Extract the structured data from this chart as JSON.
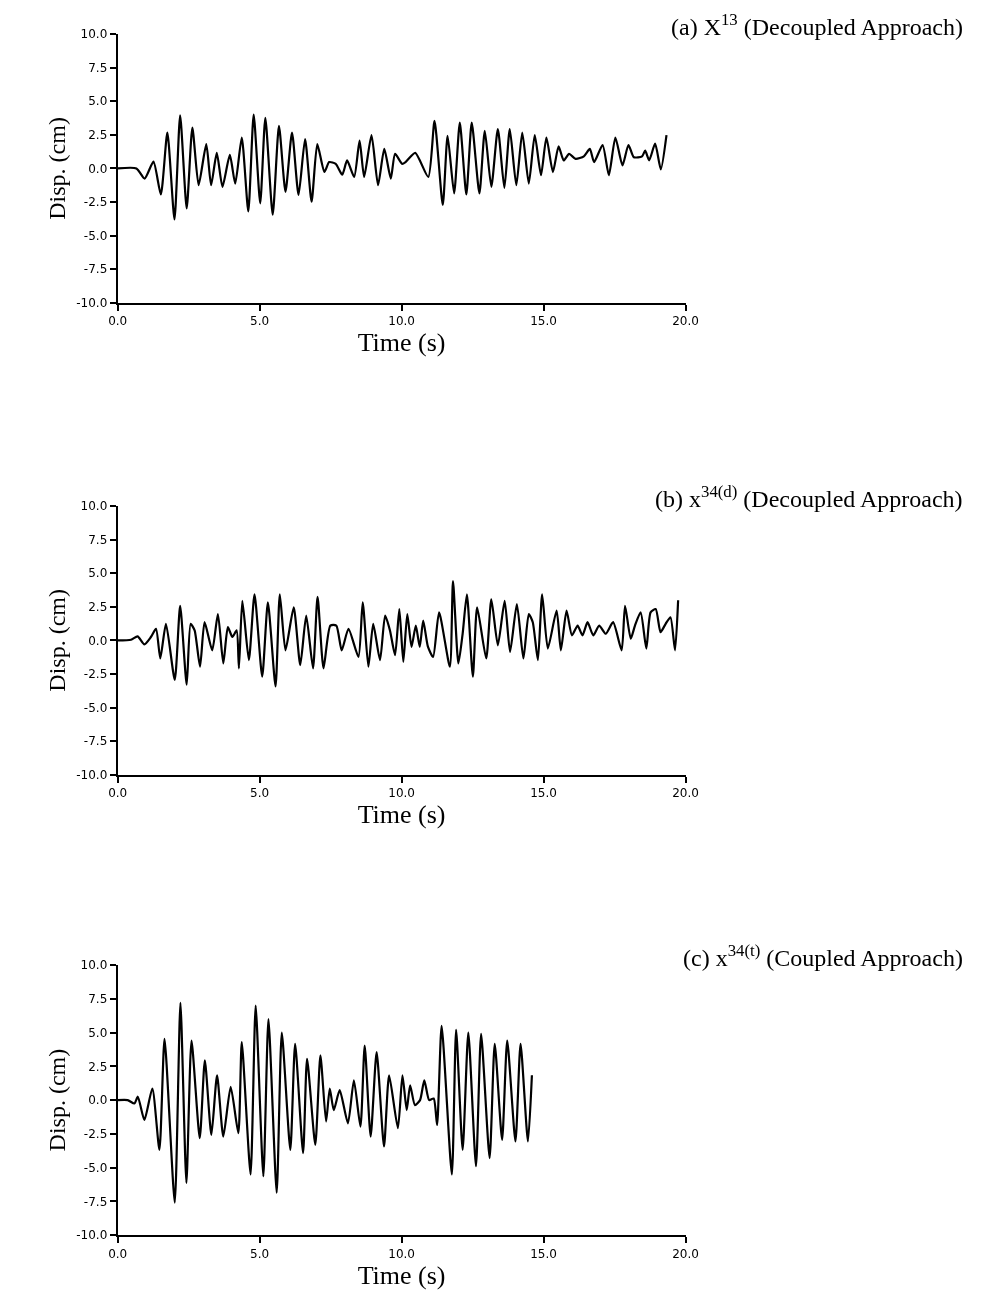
{
  "chart_data": [
    {
      "type": "line",
      "title": "(a) X$^{13}$ (Decoupled Approach)",
      "xlabel": "Time (s)",
      "ylabel": "Disp. (cm)",
      "xlim": [
        0,
        20
      ],
      "xticks": [
        {
          "value": 0,
          "label": "0.0"
        },
        {
          "value": 5,
          "label": "5.0"
        },
        {
          "value": 10,
          "label": "10.0"
        },
        {
          "value": 15,
          "label": "15.0"
        },
        {
          "value": 20,
          "label": "20.0"
        }
      ],
      "ylim": [
        -10,
        10
      ],
      "yticks": [
        {
          "value": -10,
          "label": "-10.0"
        },
        {
          "value": -7.5,
          "label": "-7.5"
        },
        {
          "value": -5,
          "label": "-5.0"
        },
        {
          "value": -2.5,
          "label": "-2.5"
        },
        {
          "value": 0,
          "label": "0.0"
        },
        {
          "value": 2.5,
          "label": "2.5"
        },
        {
          "value": 5,
          "label": "5.0"
        },
        {
          "value": 7.5,
          "label": "7.5"
        },
        {
          "value": 10,
          "label": "10.0"
        }
      ],
      "series": [
        {
          "color": "#000000",
          "x": [
            0,
            0.66,
            0.95,
            1.26,
            1.52,
            1.75,
            2.0,
            2.2,
            2.43,
            2.63,
            2.85,
            3.12,
            3.29,
            3.49,
            3.69,
            3.95,
            4.14,
            4.37,
            4.6,
            4.79,
            5.02,
            5.2,
            5.46,
            5.68,
            5.91,
            6.14,
            6.37,
            6.6,
            6.83,
            7.03,
            7.28,
            7.45,
            7.68,
            7.91,
            8.08,
            8.33,
            8.52,
            8.68,
            8.94,
            9.17,
            9.39,
            9.62,
            9.77,
            10.02,
            10.14,
            10.48,
            10.94,
            11.16,
            11.45,
            11.62,
            11.85,
            12.05,
            12.28,
            12.47,
            12.74,
            12.93,
            13.16,
            13.39,
            13.62,
            13.81,
            14.04,
            14.25,
            14.48,
            14.69,
            14.91,
            15.1,
            15.33,
            15.53,
            15.71,
            15.9,
            16.13,
            16.42,
            16.63,
            16.78,
            17.08,
            17.3,
            17.53,
            17.78,
            17.99,
            18.18,
            18.47,
            18.58,
            18.72,
            18.93,
            19.13,
            19.33
          ],
          "values": [
            0,
            0,
            -0.76,
            0.5,
            -1.94,
            2.67,
            -3.8,
            3.95,
            -2.97,
            3.04,
            -1.25,
            1.8,
            -1.25,
            1.15,
            -1.37,
            1.0,
            -1.13,
            2.3,
            -3.2,
            4.0,
            -2.6,
            3.77,
            -3.45,
            3.16,
            -1.74,
            2.67,
            -1.98,
            2.18,
            -2.48,
            1.81,
            -0.27,
            0.47,
            0.34,
            -0.47,
            0.59,
            -0.64,
            2.06,
            -0.64,
            2.48,
            -1.25,
            1.45,
            -0.76,
            1.08,
            0.34,
            0.47,
            1.15,
            -0.64,
            3.53,
            -2.72,
            2.43,
            -1.86,
            3.4,
            -1.94,
            3.4,
            -1.86,
            2.79,
            -1.37,
            2.92,
            -1.45,
            2.92,
            -1.25,
            2.67,
            -1.13,
            2.48,
            -0.51,
            2.3,
            -0.27,
            1.64,
            0.59,
            1.08,
            0.71,
            0.9,
            1.45,
            0.47,
            1.74,
            -0.51,
            2.3,
            0.22,
            1.74,
            0.83,
            0.9,
            1.32,
            0.6,
            1.84,
            -0.07,
            2.48
          ]
        }
      ]
    },
    {
      "type": "line",
      "title": "(b) x$^{34(d)}$ (Decoupled Approach)",
      "xlabel": "Time (s)",
      "ylabel": "Disp. (cm)",
      "xlim": [
        0,
        20
      ],
      "xticks": [
        {
          "value": 0,
          "label": "0.0"
        },
        {
          "value": 5,
          "label": "5.0"
        },
        {
          "value": 10,
          "label": "10.0"
        },
        {
          "value": 15,
          "label": "15.0"
        },
        {
          "value": 20,
          "label": "20.0"
        }
      ],
      "ylim": [
        -10,
        10
      ],
      "yticks": [
        {
          "value": -10,
          "label": "-10.0"
        },
        {
          "value": -7.5,
          "label": "-7.5"
        },
        {
          "value": -5,
          "label": "-5.0"
        },
        {
          "value": -2.5,
          "label": "-2.5"
        },
        {
          "value": 0,
          "label": "0.0"
        },
        {
          "value": 2.5,
          "label": "2.5"
        },
        {
          "value": 5,
          "label": "5.0"
        },
        {
          "value": 7.5,
          "label": "7.5"
        },
        {
          "value": 10,
          "label": "10.0"
        }
      ],
      "series": [
        {
          "color": "#000000",
          "x": [
            0,
            0.47,
            0.7,
            0.94,
            1.17,
            1.35,
            1.5,
            1.7,
            2.01,
            2.2,
            2.43,
            2.57,
            2.71,
            2.9,
            3.06,
            3.33,
            3.53,
            3.72,
            3.88,
            4.04,
            4.19,
            4.27,
            4.39,
            4.62,
            4.82,
            5.09,
            5.29,
            5.56,
            5.71,
            5.91,
            6.2,
            6.43,
            6.64,
            6.88,
            7.04,
            7.25,
            7.49,
            7.7,
            7.89,
            8.13,
            8.48,
            8.63,
            8.83,
            9.0,
            9.24,
            9.42,
            9.59,
            9.77,
            9.92,
            10.06,
            10.2,
            10.35,
            10.5,
            10.64,
            10.76,
            10.93,
            11.11,
            11.32,
            11.7,
            11.81,
            12.0,
            12.15,
            12.3,
            12.51,
            12.66,
            12.98,
            13.16,
            13.39,
            13.63,
            13.82,
            14.06,
            14.29,
            14.48,
            14.62,
            14.8,
            14.95,
            15.15,
            15.46,
            15.61,
            15.81,
            16.0,
            16.2,
            16.37,
            16.55,
            16.75,
            16.96,
            17.19,
            17.45,
            17.75,
            17.87,
            18.07,
            18.22,
            18.42,
            18.62,
            18.77,
            18.95,
            19.12,
            19.3,
            19.47,
            19.63,
            19.74
          ],
          "values": [
            0,
            0.05,
            0.3,
            -0.3,
            0.25,
            0.86,
            -1.35,
            1.23,
            -2.94,
            2.57,
            -3.3,
            1.23,
            0.74,
            -1.96,
            1.35,
            -0.74,
            1.96,
            -1.72,
            0.98,
            0.25,
            0.74,
            -2.08,
            2.94,
            -1.47,
            3.43,
            -2.7,
            2.82,
            -3.43,
            3.43,
            -0.74,
            2.45,
            -1.84,
            1.84,
            -2.08,
            3.24,
            -2.08,
            1.1,
            1.1,
            -0.74,
            0.86,
            -1.23,
            2.82,
            -1.96,
            1.23,
            -1.47,
            1.84,
            0.74,
            -1.1,
            2.33,
            -1.6,
            1.96,
            -0.49,
            1.1,
            -0.49,
            1.47,
            -0.49,
            -1.23,
            2.08,
            -1.96,
            4.41,
            -1.72,
            0.49,
            3.43,
            -2.7,
            2.45,
            -1.35,
            3.06,
            -0.37,
            2.94,
            -0.86,
            2.7,
            -1.35,
            1.96,
            1.35,
            -1.47,
            3.43,
            -0.61,
            2.21,
            -0.74,
            2.21,
            0.37,
            1.1,
            0.37,
            1.35,
            0.37,
            1.1,
            0.49,
            1.35,
            -0.74,
            2.57,
            0.12,
            1.1,
            2.08,
            -0.61,
            2.08,
            2.33,
            0.61,
            1.23,
            1.72,
            -0.74,
            2.99
          ]
        }
      ]
    },
    {
      "type": "line",
      "title": "(c) x$^{34(t)}$ (Coupled Approach)",
      "xlabel": "Time (s)",
      "ylabel": "Disp. (cm)",
      "xlim": [
        0,
        20
      ],
      "xticks": [
        {
          "value": 0,
          "label": "0.0"
        },
        {
          "value": 5,
          "label": "5.0"
        },
        {
          "value": 10,
          "label": "10.0"
        },
        {
          "value": 15,
          "label": "15.0"
        },
        {
          "value": 20,
          "label": "20.0"
        }
      ],
      "ylim": [
        -10,
        10
      ],
      "yticks": [
        {
          "value": -10,
          "label": "-10.0"
        },
        {
          "value": -7.5,
          "label": "-7.5"
        },
        {
          "value": -5,
          "label": "-5.0"
        },
        {
          "value": -2.5,
          "label": "-2.5"
        },
        {
          "value": 0,
          "label": "0.0"
        },
        {
          "value": 2.5,
          "label": "2.5"
        },
        {
          "value": 5,
          "label": "5.0"
        },
        {
          "value": 7.5,
          "label": "7.5"
        },
        {
          "value": 10,
          "label": "10.0"
        }
      ],
      "series": [
        {
          "color": "#000000",
          "x": [
            0,
            0.35,
            0.59,
            0.71,
            0.94,
            1.22,
            1.47,
            1.65,
            2.01,
            2.21,
            2.42,
            2.6,
            2.89,
            3.07,
            3.3,
            3.5,
            3.72,
            3.98,
            4.25,
            4.37,
            4.68,
            4.86,
            5.13,
            5.31,
            5.6,
            5.78,
            6.08,
            6.25,
            6.53,
            6.67,
            6.96,
            7.14,
            7.34,
            7.47,
            7.61,
            7.82,
            8.11,
            8.32,
            8.55,
            8.7,
            8.91,
            9.12,
            9.38,
            9.56,
            9.87,
            10.03,
            10.18,
            10.3,
            10.47,
            10.65,
            10.8,
            10.97,
            11.13,
            11.25,
            11.41,
            11.77,
            11.92,
            12.15,
            12.35,
            12.62,
            12.8,
            13.1,
            13.28,
            13.54,
            13.72,
            14.01,
            14.19,
            14.45,
            14.59
          ],
          "values": [
            0,
            0,
            -0.25,
            0.25,
            -1.47,
            0.86,
            -3.68,
            4.53,
            -7.6,
            7.2,
            -6.13,
            4.41,
            -2.82,
            2.94,
            -2.57,
            1.84,
            -2.7,
            0.98,
            -2.45,
            4.29,
            -5.51,
            7.0,
            -5.64,
            6.0,
            -6.86,
            5.0,
            -3.68,
            4.17,
            -3.92,
            3.06,
            -3.31,
            3.31,
            -1.59,
            0.86,
            -0.74,
            0.74,
            -1.72,
            1.47,
            -1.96,
            4.04,
            -2.7,
            3.55,
            -3.43,
            1.84,
            -2.08,
            1.84,
            -0.74,
            1.1,
            -0.37,
            0,
            1.47,
            0,
            0.12,
            -1.84,
            5.5,
            -5.51,
            5.2,
            -3.68,
            5.0,
            -4.9,
            4.9,
            -4.29,
            4.17,
            -2.94,
            4.41,
            -3.06,
            4.17,
            -3.06,
            1.84
          ]
        }
      ]
    }
  ]
}
